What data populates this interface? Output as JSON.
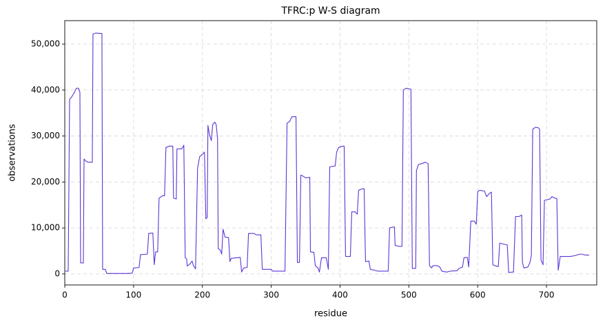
{
  "chart_data": {
    "type": "line",
    "title": "TFRC:p W-S diagram",
    "x_label": "residue",
    "y_label": "observations",
    "xlim": [
      0,
      773
    ],
    "ylim": [
      -2400,
      55100
    ],
    "xticks": [
      0,
      100,
      200,
      300,
      400,
      500,
      600,
      700
    ],
    "yticks": [
      0,
      {
        "value": 10000,
        "label": "10,000"
      },
      {
        "value": 20000,
        "label": "20,000"
      },
      {
        "value": 30000,
        "label": "30,000"
      },
      {
        "value": 40000,
        "label": "40,000"
      },
      {
        "value": 50000,
        "label": "50,000"
      }
    ],
    "grid": true,
    "series": [
      {
        "color": "#5b35d5",
        "x": [
          1,
          5,
          7,
          10,
          14,
          17,
          20,
          22,
          23,
          27,
          28,
          31,
          34,
          40,
          41,
          45,
          54,
          55,
          59,
          61,
          70,
          90,
          98,
          100,
          108,
          110,
          120,
          122,
          128,
          130,
          132,
          135,
          137,
          142,
          145,
          147,
          152,
          157,
          158,
          162,
          163,
          170,
          173,
          175,
          177,
          178,
          182,
          185,
          187,
          190,
          193,
          196,
          200,
          203,
          205,
          207,
          208,
          210,
          213,
          215,
          218,
          220,
          222,
          223,
          226,
          228,
          230,
          233,
          238,
          240,
          242,
          255,
          257,
          260,
          265,
          267,
          275,
          278,
          285,
          287,
          300,
          302,
          320,
          323,
          327,
          330,
          336,
          338,
          341,
          343,
          346,
          350,
          356,
          357,
          362,
          364,
          368,
          370,
          373,
          380,
          383,
          385,
          393,
          395,
          398,
          404,
          406,
          408,
          415,
          417,
          422,
          425,
          427,
          432,
          435,
          437,
          442,
          444,
          450,
          455,
          470,
          472,
          477,
          479,
          480,
          486,
          490,
          492,
          496,
          503,
          505,
          510,
          511,
          514,
          519,
          524,
          528,
          530,
          533,
          535,
          541,
          545,
          548,
          555,
          560,
          570,
          573,
          578,
          580,
          585,
          587,
          590,
          595,
          598,
          600,
          603,
          610,
          613,
          617,
          620,
          622,
          625,
          630,
          632,
          640,
          643,
          645,
          650,
          652,
          655,
          660,
          664,
          665,
          667,
          673,
          676,
          678,
          680,
          684,
          688,
          690,
          692,
          695,
          697,
          702,
          705,
          708,
          712,
          715,
          717,
          720,
          726,
          735,
          742,
          748,
          752,
          756,
          762
        ],
        "values": [
          600,
          600,
          38000,
          38500,
          39500,
          40400,
          40400,
          39500,
          2400,
          2400,
          25000,
          24500,
          24300,
          24300,
          52200,
          52400,
          52300,
          1000,
          1000,
          100,
          100,
          100,
          150,
          1300,
          1400,
          4200,
          4300,
          8800,
          8900,
          2000,
          4800,
          4800,
          16500,
          17000,
          17000,
          27500,
          27800,
          27800,
          16500,
          16300,
          27200,
          27200,
          28000,
          3500,
          3300,
          1700,
          2200,
          2800,
          1800,
          1100,
          23000,
          25500,
          26000,
          26500,
          12000,
          12300,
          32300,
          30500,
          29000,
          32500,
          33000,
          32500,
          29500,
          5500,
          5200,
          4300,
          9700,
          8000,
          7900,
          2700,
          3400,
          3600,
          400,
          1300,
          1400,
          8800,
          8800,
          8500,
          8500,
          1000,
          1000,
          600,
          600,
          32800,
          33200,
          34200,
          34200,
          2500,
          2500,
          21500,
          21300,
          20900,
          21000,
          4800,
          4700,
          1800,
          1300,
          400,
          3500,
          3500,
          1000,
          23300,
          23500,
          26500,
          27500,
          27800,
          27800,
          3800,
          3800,
          13500,
          13500,
          13000,
          18200,
          18500,
          18500,
          2700,
          2800,
          1000,
          800,
          600,
          600,
          10000,
          10200,
          10200,
          6200,
          6000,
          6000,
          40000,
          40400,
          40200,
          1200,
          1200,
          22500,
          23800,
          24000,
          24300,
          24000,
          1800,
          1300,
          1800,
          1800,
          1500,
          600,
          400,
          600,
          700,
          1200,
          1500,
          3500,
          3600,
          1500,
          11500,
          11500,
          10800,
          17900,
          18200,
          18000,
          16800,
          17500,
          17800,
          2000,
          1800,
          1600,
          6700,
          6400,
          6300,
          300,
          400,
          400,
          12500,
          12500,
          12800,
          2600,
          1300,
          1500,
          2500,
          4000,
          31500,
          31900,
          31800,
          31500,
          3000,
          2000,
          16000,
          16200,
          16300,
          16800,
          16500,
          16400,
          800,
          3800,
          3800,
          3800,
          4000,
          4300,
          4300,
          4100,
          4100
        ]
      }
    ]
  }
}
